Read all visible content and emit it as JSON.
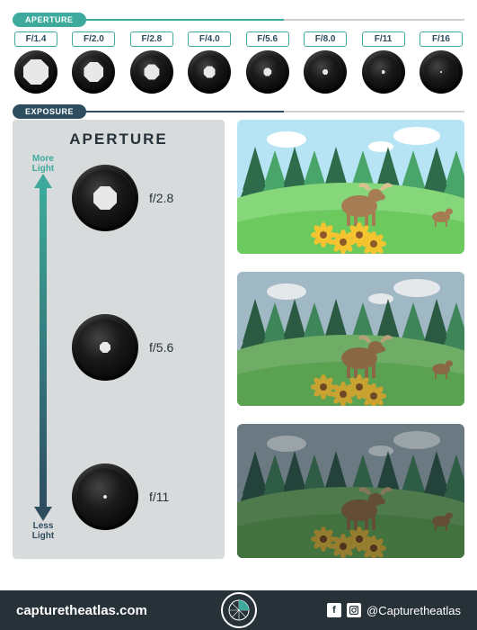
{
  "sections": {
    "aperture_tag": "APERTURE",
    "exposure_tag": "EXPOSURE"
  },
  "aperture_scale": {
    "items": [
      {
        "label": "F/1.4",
        "hole_size": 28
      },
      {
        "label": "F/2.0",
        "hole_size": 22
      },
      {
        "label": "F/2.8",
        "hole_size": 17
      },
      {
        "label": "F/4.0",
        "hole_size": 13
      },
      {
        "label": "F/5.6",
        "hole_size": 9
      },
      {
        "label": "F/8.0",
        "hole_size": 6
      },
      {
        "label": "F/11",
        "hole_size": 4
      },
      {
        "label": "F/16",
        "hole_size": 2
      }
    ],
    "label_border_color": "#3daa9d",
    "label_text_color": "#2d4d5e",
    "hole_color": "#e8e8e8"
  },
  "exposure_panel": {
    "title": "APERTURE",
    "more_label": "More\nLight",
    "less_label": "Less\nLight",
    "arrow_top_color": "#3daa9d",
    "arrow_bottom_color": "#2d4d5e",
    "background_color": "#d8dbdc",
    "samples": [
      {
        "value": "f/2.8",
        "hole_size": 26
      },
      {
        "value": "f/5.6",
        "hole_size": 12
      },
      {
        "value": "f/11",
        "hole_size": 4
      }
    ]
  },
  "scenes": {
    "palette_bright": {
      "sky": "#b7e4f4",
      "cloud": "#ffffff",
      "trees_dark": "#2d6b4a",
      "trees_light": "#4aa56b",
      "grass_back": "#86d67a",
      "grass_front": "#6bc95e",
      "flower_petal": "#f4c430",
      "flower_center": "#8b5a2b",
      "moose_body": "#a67c52",
      "moose_antler": "#d9c28f"
    },
    "palette_mid": {
      "sky": "#9fb8c4",
      "cloud": "#e4e8ea",
      "trees_dark": "#2a5a42",
      "trees_light": "#3e8659",
      "grass_back": "#6fad66",
      "grass_front": "#5aa252",
      "flower_petal": "#caa232",
      "flower_center": "#6f4824",
      "moose_body": "#8a6745",
      "moose_antler": "#b5a278"
    },
    "palette_dark": {
      "sky": "#6b7a82",
      "cloud": "#9aa4a8",
      "trees_dark": "#22423a",
      "trees_light": "#2f5c44",
      "grass_back": "#4e7a4c",
      "grass_front": "#42733f",
      "flower_petal": "#967c2e",
      "flower_center": "#4d341c",
      "moose_body": "#634d36",
      "moose_antler": "#837659"
    }
  },
  "footer": {
    "url": "capturetheatlas.com",
    "handle": "@Capturetheatlas",
    "background": "#263238",
    "text_color": "#ffffff"
  }
}
